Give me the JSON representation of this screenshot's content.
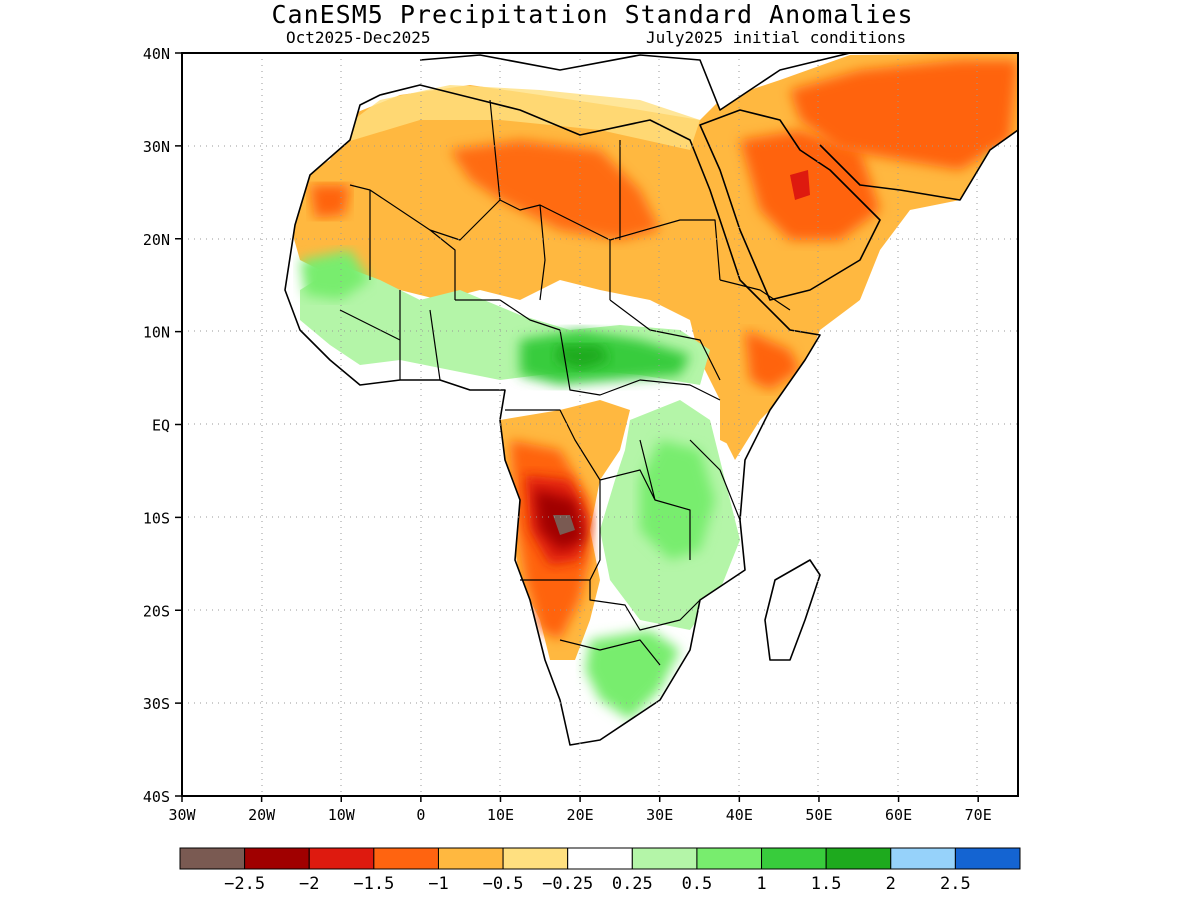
{
  "title": "CanESM5 Precipitation Standard Anomalies",
  "subtitle_left": "Oct2025-Dec2025",
  "subtitle_right": "July2025 initial conditions",
  "axes": {
    "lat_labels": [
      "40N",
      "30N",
      "20N",
      "10N",
      "EQ",
      "10S",
      "20S",
      "30S",
      "40S"
    ],
    "lon_labels": [
      "30W",
      "20W",
      "10W",
      "0",
      "10E",
      "20E",
      "30E",
      "40E",
      "50E",
      "60E",
      "70E"
    ],
    "grid": true
  },
  "colorbar": {
    "labels": [
      "-2.5",
      "-2",
      "-1.5",
      "-1",
      "-0.5",
      "-0.25",
      "0.25",
      "0.5",
      "1",
      "1.5",
      "2",
      "2.5"
    ],
    "colors": [
      "#7a5a52",
      "#a00000",
      "#de1a0f",
      "#ff6410",
      "#ffb840",
      "#ffe080",
      "#ffffff",
      "#b4f5a8",
      "#78ed6e",
      "#38cc3c",
      "#1eaa1e",
      "#96d2fa",
      "#1464d2"
    ]
  }
}
